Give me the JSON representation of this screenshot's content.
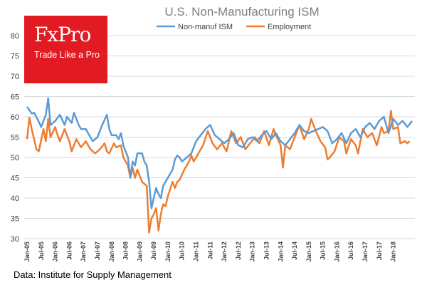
{
  "brand": {
    "name": "FxPro",
    "tagline": "Trade Like a Pro",
    "color": "#e21b23"
  },
  "source_note": "Data: Institute for Supply Management",
  "chart_data": {
    "type": "line",
    "title": "U.S. Non-Manufacturing  ISM",
    "xlabel": "",
    "ylabel": "",
    "ylim": [
      30,
      80
    ],
    "yticks": [
      30,
      35,
      40,
      45,
      50,
      55,
      60,
      65,
      70,
      75,
      80
    ],
    "grid": true,
    "legend_position": "top",
    "x_start": "2005-01",
    "x_end": "2018-08",
    "x_tick_labels": [
      "Jan-05",
      "Jul-05",
      "Jan-06",
      "Jul-06",
      "Jan-07",
      "Jul-07",
      "Jan-08",
      "Jul-08",
      "Jan-09",
      "Jul-09",
      "Jan-10",
      "Jul-10",
      "Jan-11",
      "Jul-11",
      "Jan-12",
      "Jul-12",
      "Jan-13",
      "Jul-13",
      "Jan-14",
      "Jul-14",
      "Jan-15",
      "Jul-15",
      "Jan-16",
      "Jul-16",
      "Jan-17",
      "Jul-17",
      "Jan-18"
    ],
    "series": [
      {
        "name": "Non-manuf ISM",
        "color": "#5b9bd5",
        "points": [
          [
            0,
            62.5
          ],
          [
            2,
            60.8
          ],
          [
            3,
            61
          ],
          [
            5,
            58.8
          ],
          [
            6,
            57.5
          ],
          [
            8,
            60.5
          ],
          [
            9,
            64.6
          ],
          [
            10,
            58
          ],
          [
            12,
            59
          ],
          [
            14,
            60.5
          ],
          [
            16,
            58
          ],
          [
            17,
            60
          ],
          [
            19,
            58.5
          ],
          [
            20,
            61
          ],
          [
            22,
            58
          ],
          [
            23,
            57
          ],
          [
            25,
            57
          ],
          [
            26,
            56
          ],
          [
            28,
            54
          ],
          [
            30,
            55
          ],
          [
            32,
            58
          ],
          [
            34,
            60.5
          ],
          [
            35,
            57
          ],
          [
            36,
            55.5
          ],
          [
            38,
            55.5
          ],
          [
            39,
            54.5
          ],
          [
            40,
            56
          ],
          [
            41,
            53
          ],
          [
            43,
            50
          ],
          [
            44,
            45
          ],
          [
            45,
            49
          ],
          [
            46,
            48
          ],
          [
            47,
            51
          ],
          [
            49,
            51
          ],
          [
            50,
            49
          ],
          [
            51,
            48
          ],
          [
            52,
            44
          ],
          [
            53,
            37.5
          ],
          [
            54,
            40
          ],
          [
            55,
            42.5
          ],
          [
            56,
            41
          ],
          [
            57,
            40
          ],
          [
            58,
            43
          ],
          [
            60,
            45
          ],
          [
            62,
            47
          ],
          [
            63,
            49.5
          ],
          [
            64,
            50.5
          ],
          [
            65,
            50
          ],
          [
            66,
            49
          ],
          [
            68,
            50
          ],
          [
            70,
            51
          ],
          [
            72,
            54
          ],
          [
            74,
            55.5
          ],
          [
            76,
            57
          ],
          [
            78,
            58
          ],
          [
            80,
            55.5
          ],
          [
            82,
            54.5
          ],
          [
            84,
            53.5
          ],
          [
            86,
            54.5
          ],
          [
            88,
            56
          ],
          [
            90,
            53
          ],
          [
            92,
            52.5
          ],
          [
            94,
            54.5
          ],
          [
            96,
            55
          ],
          [
            98,
            54
          ],
          [
            100,
            55.5
          ],
          [
            102,
            56.5
          ],
          [
            104,
            54.5
          ],
          [
            106,
            56
          ],
          [
            108,
            54
          ],
          [
            110,
            53
          ],
          [
            112,
            54.5
          ],
          [
            114,
            56
          ],
          [
            116,
            58
          ],
          [
            118,
            56.5
          ],
          [
            120,
            56
          ],
          [
            122,
            56.5
          ],
          [
            124,
            57
          ],
          [
            126,
            57.5
          ],
          [
            128,
            56.5
          ],
          [
            130,
            53.5
          ],
          [
            132,
            54.5
          ],
          [
            134,
            56
          ],
          [
            136,
            53.5
          ],
          [
            138,
            56
          ],
          [
            140,
            57
          ],
          [
            142,
            55
          ],
          [
            144,
            57.5
          ],
          [
            146,
            58.5
          ],
          [
            148,
            57
          ],
          [
            150,
            59
          ],
          [
            152,
            60
          ],
          [
            154,
            56
          ],
          [
            156,
            59.5
          ],
          [
            158,
            58
          ],
          [
            160,
            59
          ],
          [
            162,
            57.5
          ],
          [
            164,
            59
          ]
        ]
      },
      {
        "name": "Employment",
        "color": "#ed7d31",
        "points": [
          [
            0,
            54.5
          ],
          [
            1,
            59.8
          ],
          [
            2,
            57
          ],
          [
            4,
            52
          ],
          [
            5,
            51.5
          ],
          [
            7,
            57
          ],
          [
            8,
            54
          ],
          [
            9,
            59.5
          ],
          [
            10,
            55
          ],
          [
            12,
            57.5
          ],
          [
            13,
            55.5
          ],
          [
            14,
            54
          ],
          [
            16,
            57
          ],
          [
            18,
            54
          ],
          [
            19,
            51.5
          ],
          [
            21,
            54.5
          ],
          [
            23,
            52.5
          ],
          [
            25,
            54
          ],
          [
            27,
            52
          ],
          [
            29,
            51
          ],
          [
            31,
            52
          ],
          [
            33,
            53.5
          ],
          [
            34,
            51.5
          ],
          [
            35,
            51
          ],
          [
            37,
            53.5
          ],
          [
            38,
            52.5
          ],
          [
            40,
            53
          ],
          [
            41,
            50
          ],
          [
            42,
            49
          ],
          [
            43,
            48
          ],
          [
            44,
            45
          ],
          [
            45,
            47.5
          ],
          [
            46,
            45
          ],
          [
            47,
            47
          ],
          [
            49,
            44
          ],
          [
            51,
            43
          ],
          [
            52,
            31.5
          ],
          [
            53,
            35
          ],
          [
            54,
            36
          ],
          [
            55,
            37.5
          ],
          [
            56,
            32
          ],
          [
            57,
            36
          ],
          [
            58,
            38.5
          ],
          [
            59,
            38
          ],
          [
            60,
            40.5
          ],
          [
            62,
            44
          ],
          [
            63,
            42.5
          ],
          [
            64,
            44
          ],
          [
            65,
            44.5
          ],
          [
            67,
            47
          ],
          [
            69,
            49
          ],
          [
            70,
            50.5
          ],
          [
            71,
            49
          ],
          [
            73,
            51
          ],
          [
            75,
            53
          ],
          [
            77,
            56.5
          ],
          [
            79,
            53.5
          ],
          [
            81,
            52
          ],
          [
            83,
            53.5
          ],
          [
            85,
            51.5
          ],
          [
            87,
            56.5
          ],
          [
            89,
            53.5
          ],
          [
            91,
            55
          ],
          [
            93,
            52
          ],
          [
            95,
            53.5
          ],
          [
            97,
            55
          ],
          [
            99,
            53.5
          ],
          [
            101,
            56.5
          ],
          [
            103,
            53
          ],
          [
            105,
            57
          ],
          [
            106,
            55.5
          ],
          [
            108,
            53
          ],
          [
            109,
            47.5
          ],
          [
            110,
            53
          ],
          [
            112,
            52
          ],
          [
            114,
            55
          ],
          [
            116,
            58
          ],
          [
            118,
            54.5
          ],
          [
            120,
            57
          ],
          [
            121,
            59.5
          ],
          [
            123,
            56.5
          ],
          [
            125,
            54
          ],
          [
            127,
            52.5
          ],
          [
            128,
            49.5
          ],
          [
            129,
            50
          ],
          [
            131,
            51.5
          ],
          [
            133,
            55
          ],
          [
            135,
            54
          ],
          [
            136,
            51
          ],
          [
            138,
            54.5
          ],
          [
            140,
            53
          ],
          [
            141,
            51
          ],
          [
            143,
            57
          ],
          [
            145,
            55
          ],
          [
            147,
            56
          ],
          [
            149,
            53
          ],
          [
            151,
            57.5
          ],
          [
            152,
            56
          ],
          [
            154,
            56.5
          ],
          [
            155,
            61.5
          ],
          [
            156,
            57
          ],
          [
            158,
            57.5
          ],
          [
            159,
            53.5
          ],
          [
            161,
            54
          ],
          [
            162,
            53.5
          ],
          [
            163,
            54
          ]
        ]
      }
    ]
  }
}
